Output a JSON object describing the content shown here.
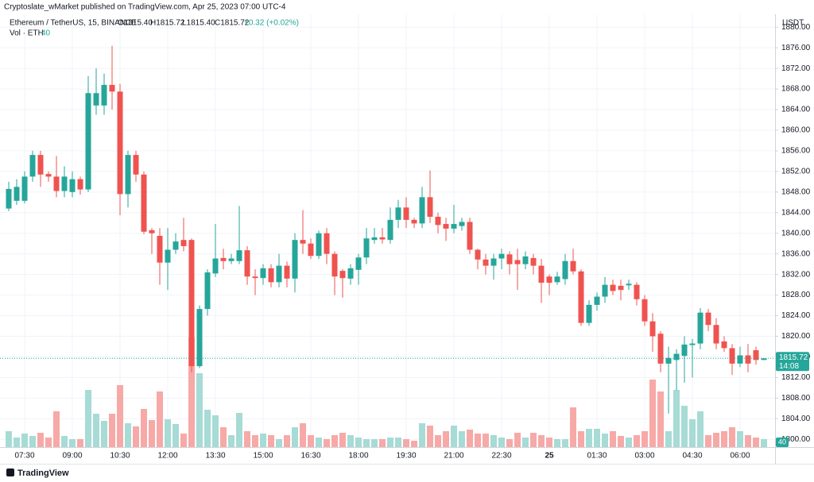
{
  "chart_data": {
    "type": "candlestick",
    "header": "Cryptoslate_wMarket published on TradingView.com, Apr 25, 2023 07:00 UTC-4",
    "symbol": "Ethereum / TetherUS, 15, BINANCE",
    "ohlc": [
      "O1815.40",
      "H1815.72",
      "L1815.40",
      "C1815.72"
    ],
    "change": "+0.32 (+0.02%)",
    "volume_legend": "Vol · ETH",
    "currency": "USDT",
    "countdown": "14:08",
    "footer": "TradingView",
    "up_color": "#26a69a",
    "down_color": "#ef5350",
    "up_volume_color": "#a7dbd5",
    "down_volume_color": "#f7a9a7",
    "grid": true,
    "last_price": {
      "value": 1815.72,
      "label": "1815.72"
    },
    "ylim": [
      1798.5,
      1882.5
    ],
    "yticks": [
      {
        "value": 1800,
        "label": "1800.00"
      },
      {
        "value": 1804,
        "label": "1804.00"
      },
      {
        "value": 1808,
        "label": "1808.00"
      },
      {
        "value": 1812,
        "label": "1812.00"
      },
      {
        "value": 1816,
        "label": "1816.00"
      },
      {
        "value": 1820,
        "label": "1820.00"
      },
      {
        "value": 1824,
        "label": "1824.00"
      },
      {
        "value": 1828,
        "label": "1828.00"
      },
      {
        "value": 1832,
        "label": "1832.00"
      },
      {
        "value": 1836,
        "label": "1836.00"
      },
      {
        "value": 1840,
        "label": "1840.00"
      },
      {
        "value": 1844,
        "label": "1844.00"
      },
      {
        "value": 1848,
        "label": "1848.00"
      },
      {
        "value": 1852,
        "label": "1852.00"
      },
      {
        "value": 1856,
        "label": "1856.00"
      },
      {
        "value": 1860,
        "label": "1860.00"
      },
      {
        "value": 1864,
        "label": "1864.00"
      },
      {
        "value": 1868,
        "label": "1868.00"
      },
      {
        "value": 1872,
        "label": "1872.00"
      },
      {
        "value": 1876,
        "label": "1876.00"
      },
      {
        "value": 1880,
        "label": "1880.00"
      }
    ],
    "xticks": [
      "07:30",
      "09:00",
      "10:30",
      "12:00",
      "13:30",
      "15:00",
      "16:30",
      "18:00",
      "19:30",
      "21:00",
      "22:30",
      {
        "value": "00:00",
        "label": "25"
      },
      "01:30",
      "03:00",
      "04:30",
      "06:00"
    ],
    "categories": [
      "07:00",
      "07:15",
      "07:30",
      "07:45",
      "08:00",
      "08:15",
      "08:30",
      "08:45",
      "09:00",
      "09:15",
      "09:30",
      "09:45",
      "10:00",
      "10:15",
      "10:30",
      "10:45",
      "11:00",
      "11:15",
      "11:30",
      "11:45",
      "12:00",
      "12:15",
      "12:30",
      "12:45",
      "13:00",
      "13:15",
      "13:30",
      "13:45",
      "14:00",
      "14:15",
      "14:30",
      "14:45",
      "15:00",
      "15:15",
      "15:30",
      "15:45",
      "16:00",
      "16:15",
      "16:30",
      "16:45",
      "17:00",
      "17:15",
      "17:30",
      "17:45",
      "18:00",
      "18:15",
      "18:30",
      "18:45",
      "19:00",
      "19:15",
      "19:30",
      "19:45",
      "20:00",
      "20:15",
      "20:30",
      "20:45",
      "21:00",
      "21:15",
      "21:30",
      "21:45",
      "22:00",
      "22:15",
      "22:30",
      "22:45",
      "23:00",
      "23:15",
      "23:30",
      "23:45",
      "00:00",
      "00:15",
      "00:30",
      "00:45",
      "01:00",
      "01:15",
      "01:30",
      "01:45",
      "02:00",
      "02:15",
      "02:30",
      "02:45",
      "03:00",
      "03:15",
      "03:30",
      "03:45",
      "04:00",
      "04:15",
      "04:30",
      "04:45",
      "05:00",
      "05:15",
      "05:30",
      "05:45",
      "06:00",
      "06:15",
      "06:30",
      "06:45"
    ],
    "open": [
      1844.8,
      1846.3,
      1846.3,
      1851,
      1855.2,
      1851.5,
      1851,
      1848.2,
      1848,
      1850.5,
      1848.5,
      1864.8,
      1864.8,
      1868.8,
      1867.5,
      1847.6,
      1855.2,
      1851.4,
      1840.6,
      1839.5,
      1834.3,
      1836.8,
      1838.7,
      1838.7,
      1814.2,
      1825.3,
      1832.2,
      1835.2,
      1834.6,
      1834.6,
      1836.7,
      1831.6,
      1831.3,
      1833.2,
      1830.5,
      1833.7,
      1831.2,
      1838.7,
      1838,
      1835.6,
      1840,
      1836,
      1832.7,
      1831.2,
      1832.9,
      1835.3,
      1838.7,
      1839.2,
      1838.7,
      1842.6,
      1845,
      1842.6,
      1841.9,
      1847,
      1843.2,
      1841.8,
      1840.9,
      1841.4,
      1842.2,
      1836.8,
      1834.9,
      1833.7,
      1835.1,
      1835.9,
      1834.8,
      1834,
      1835.2,
      1833.7,
      1831.6,
      1830.5,
      1831.1,
      1834.6,
      1832.6,
      1822.6,
      1826.1,
      1827.7,
      1830,
      1829.8,
      1829.9,
      1830,
      1827.2,
      1822.9,
      1820.5,
      1814.7,
      1815.4,
      1816.2,
      1818.3,
      1818.6,
      1824.6,
      1822.2,
      1819,
      1817.7,
      1814.7,
      1816.3,
      1817.3,
      1815.4
    ],
    "high": [
      1850,
      1850.5,
      1852,
      1856,
      1856,
      1852,
      1855,
      1853,
      1852,
      1851,
      1870.5,
      1872,
      1871,
      1876.4,
      1869,
      1856,
      1856,
      1852,
      1841,
      1841,
      1841,
      1840,
      1843,
      1839,
      1826,
      1833,
      1841.8,
      1837,
      1836,
      1845.3,
      1837.5,
      1833,
      1834,
      1834,
      1836,
      1834.5,
      1840,
      1844.5,
      1839,
      1840.5,
      1841,
      1836.5,
      1833,
      1834,
      1836,
      1841,
      1841,
      1841,
      1845,
      1846.5,
      1847,
      1843,
      1849,
      1852.2,
      1844,
      1843,
      1845.5,
      1843,
      1843,
      1837,
      1836,
      1836,
      1837,
      1836.5,
      1837,
      1836.5,
      1836,
      1835,
      1832,
      1832.5,
      1836,
      1837,
      1833,
      1827,
      1828.5,
      1831.5,
      1831,
      1831,
      1831,
      1830.5,
      1828,
      1824.5,
      1821,
      1818,
      1817.5,
      1820,
      1819.5,
      1825.5,
      1825.3,
      1823.5,
      1820,
      1818.5,
      1818,
      1818.5,
      1818,
      1815.72
    ],
    "low": [
      1844.3,
      1845.5,
      1845.8,
      1850,
      1849,
      1850,
      1847,
      1847,
      1847,
      1847.5,
      1848,
      1863,
      1863,
      1864,
      1843.5,
      1845,
      1850,
      1839.8,
      1836,
      1830,
      1829,
      1836,
      1836.5,
      1813,
      1813.8,
      1824,
      1831.5,
      1833,
      1834,
      1834,
      1830,
      1828,
      1830,
      1829.5,
      1829.5,
      1829.5,
      1828.5,
      1836,
      1835,
      1835,
      1834,
      1828,
      1827.5,
      1830,
      1830,
      1834,
      1838,
      1838,
      1838,
      1841,
      1841,
      1841,
      1841,
      1842,
      1840,
      1838.5,
      1840,
      1840.5,
      1836,
      1833,
      1832,
      1831,
      1833,
      1832,
      1829,
      1833,
      1832,
      1826.5,
      1828,
      1830,
      1830,
      1832,
      1822,
      1822,
      1825,
      1826.5,
      1828,
      1827,
      1829,
      1826,
      1822,
      1817,
      1813,
      1805,
      1809.5,
      1811,
      1812,
      1817.5,
      1821,
      1817.5,
      1817,
      1812.5,
      1814,
      1813,
      1814.5,
      1815.4
    ],
    "close": [
      1848.6,
      1849,
      1851,
      1855.2,
      1851.4,
      1851,
      1848.2,
      1851,
      1850.5,
      1848.5,
      1867.2,
      1867.2,
      1868.8,
      1867.5,
      1847.6,
      1855.2,
      1851.4,
      1840.3,
      1840,
      1834.3,
      1836.8,
      1838.4,
      1837.5,
      1814.2,
      1825.3,
      1832.4,
      1835.1,
      1834.6,
      1835.1,
      1836.7,
      1831.6,
      1831.3,
      1833.2,
      1830.5,
      1833.7,
      1831.2,
      1838.7,
      1838,
      1835.6,
      1840,
      1836,
      1831.6,
      1831.3,
      1833.2,
      1835.3,
      1839,
      1839.2,
      1838.8,
      1842.6,
      1845,
      1842.6,
      1841.9,
      1847,
      1843.2,
      1841.6,
      1840.9,
      1841.8,
      1842.2,
      1836.8,
      1834.9,
      1833.7,
      1835.1,
      1836,
      1834,
      1834,
      1835.5,
      1833.7,
      1830.4,
      1830.4,
      1831.6,
      1834.6,
      1832.6,
      1822.6,
      1826.1,
      1827.7,
      1830,
      1828.8,
      1829,
      1830.2,
      1827.2,
      1822.9,
      1820,
      1814.7,
      1815.8,
      1816.6,
      1818.4,
      1818.6,
      1824.6,
      1822.2,
      1818.6,
      1817.7,
      1814.7,
      1816.3,
      1814.7,
      1815.4,
      1815.72
    ],
    "volume": [
      80,
      48,
      68,
      56,
      72,
      48,
      180,
      56,
      40,
      40,
      288,
      168,
      132,
      168,
      312,
      120,
      104,
      192,
      136,
      280,
      140,
      116,
      68,
      552,
      372,
      188,
      160,
      100,
      60,
      172,
      80,
      60,
      68,
      60,
      40,
      60,
      100,
      120,
      60,
      48,
      40,
      60,
      72,
      60,
      48,
      40,
      40,
      40,
      48,
      48,
      40,
      32,
      120,
      108,
      60,
      80,
      108,
      80,
      88,
      68,
      68,
      60,
      48,
      40,
      72,
      48,
      72,
      60,
      48,
      40,
      40,
      200,
      80,
      92,
      92,
      68,
      80,
      56,
      48,
      60,
      80,
      340,
      280,
      80,
      288,
      208,
      140,
      180,
      60,
      72,
      80,
      100,
      80,
      60,
      48,
      40
    ]
  }
}
